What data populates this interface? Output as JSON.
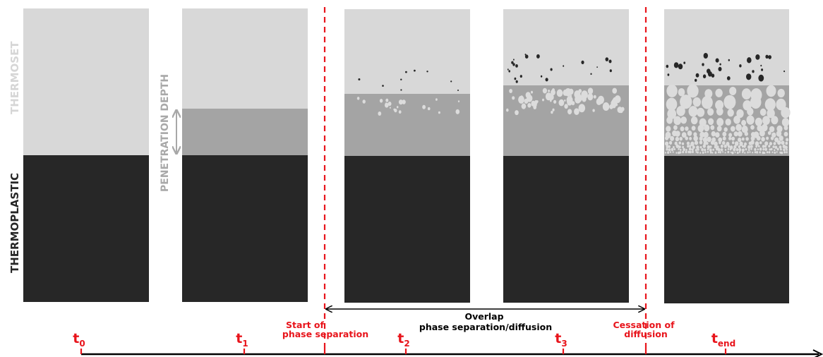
{
  "colors": {
    "thermoset": "#d8d8d8",
    "thermoplastic": "#272727",
    "interphase": "#a4a4a4",
    "accent_red": "#e8141b",
    "droplet_light": "#dcdcdc",
    "label_light": "#d6d6d6",
    "label_grey": "#a8a8a8"
  },
  "labels": {
    "thermoset": "THERMOSET",
    "thermoplastic": "THERMOPLASTIC",
    "penetration_depth": "PENETRATION DEPTH"
  },
  "events": {
    "start_line1": "Start of",
    "start_line2": "phase separation",
    "cessation_line1": "Cessation of",
    "cessation_line2": "diffusion",
    "overlap_line1": "Overlap",
    "overlap_line2": "phase separation/diffusion"
  },
  "timeline": [
    {
      "t": "t",
      "sub": "0"
    },
    {
      "t": "t",
      "sub": "1"
    },
    {
      "t": "t",
      "sub": "2"
    },
    {
      "t": "t",
      "sub": "3"
    },
    {
      "t": "t",
      "sub": "end"
    }
  ],
  "panels": [
    "t0",
    "t1",
    "t2",
    "t3",
    "tend"
  ]
}
